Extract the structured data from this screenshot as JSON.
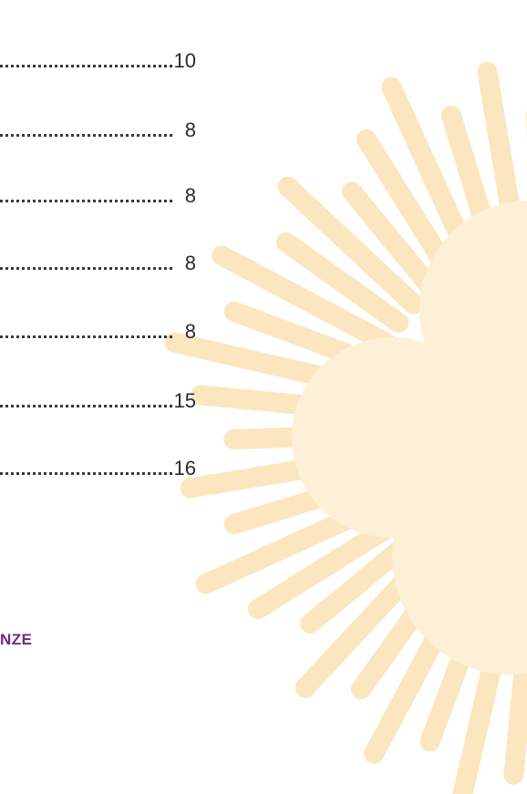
{
  "toc": {
    "entries": [
      {
        "page": 10
      },
      {
        "page": 8
      },
      {
        "page": 8
      },
      {
        "page": 8
      },
      {
        "page": 8
      },
      {
        "page": 15
      },
      {
        "page": 16
      }
    ]
  },
  "footer": "NZE"
}
